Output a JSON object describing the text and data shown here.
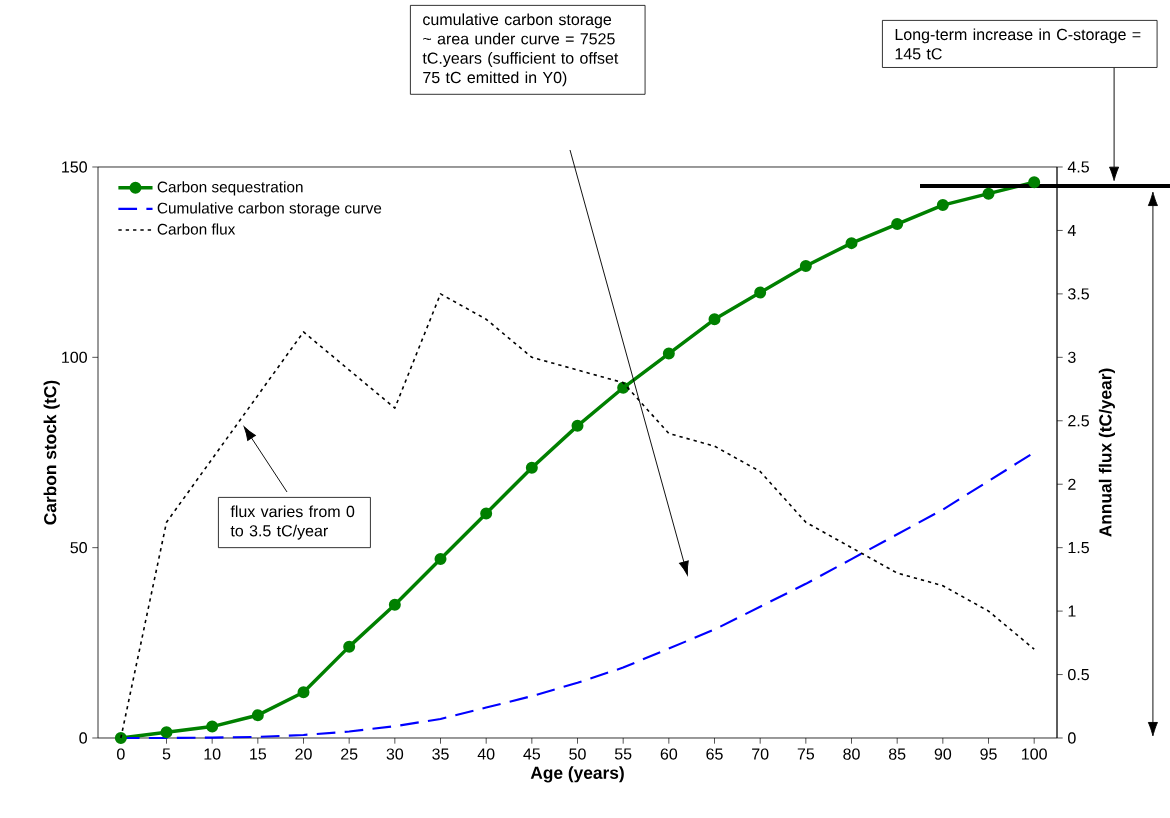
{
  "chart_data": {
    "type": "line",
    "xlabel": "Age (years)",
    "ylabel": "Carbon stock (tC)",
    "y2label": "Annual flux (tC/year)",
    "categories": [
      "0",
      "5",
      "10",
      "15",
      "20",
      "25",
      "30",
      "35",
      "40",
      "45",
      "50",
      "55",
      "60",
      "65",
      "70",
      "75",
      "80",
      "85",
      "90",
      "95",
      "100"
    ],
    "series": [
      {
        "name": "Carbon sequestration",
        "color": "#008000",
        "marker": "circle",
        "line_style": "solid",
        "values": [
          0,
          1.5,
          3,
          6,
          12,
          24,
          35,
          47,
          59,
          71,
          82,
          92,
          101,
          110,
          117,
          124,
          130,
          135,
          140,
          143,
          146
        ]
      },
      {
        "name": "Cumulative carbon storage curve",
        "color": "#0000ff",
        "marker": "none",
        "line_style": "dashed",
        "values": [
          0,
          0,
          0.1,
          0.3,
          0.8,
          1.7,
          3.1,
          5,
          8,
          11,
          14.5,
          18.5,
          23.5,
          28.5,
          34.5,
          40.5,
          47,
          53.5,
          60,
          67.5,
          75
        ]
      },
      {
        "name": "Carbon flux",
        "color": "#000000",
        "marker": "none",
        "line_style": "dotted",
        "axis": "y2",
        "values": [
          0,
          1.7,
          2.2,
          2.7,
          3.2,
          2.9,
          2.6,
          3.5,
          3.3,
          3.0,
          2.9,
          2.8,
          2.4,
          2.3,
          2.1,
          1.7,
          1.5,
          1.3,
          1.2,
          1.0,
          0.7
        ]
      }
    ],
    "ylim": [
      0,
      150
    ],
    "yticks": [
      0,
      50,
      100,
      150
    ],
    "y2lim": [
      0,
      4.5
    ],
    "y2ticks": [
      0,
      0.5,
      1,
      1.5,
      2,
      2.5,
      3,
      3.5,
      4,
      4.5
    ],
    "ref_lines": [
      {
        "axis": "y",
        "value": 145,
        "color": "#000000"
      }
    ],
    "annotations": [
      "cumulative carbon storage ~ area under curve = 7525 tC.years (sufficient to offset 75 tC emitted in Y0)",
      "flux varies from 0 to 3.5 tC/year",
      "Long-term increase in C-storage = 145 tC"
    ],
    "legend": "top left",
    "grid": false
  }
}
